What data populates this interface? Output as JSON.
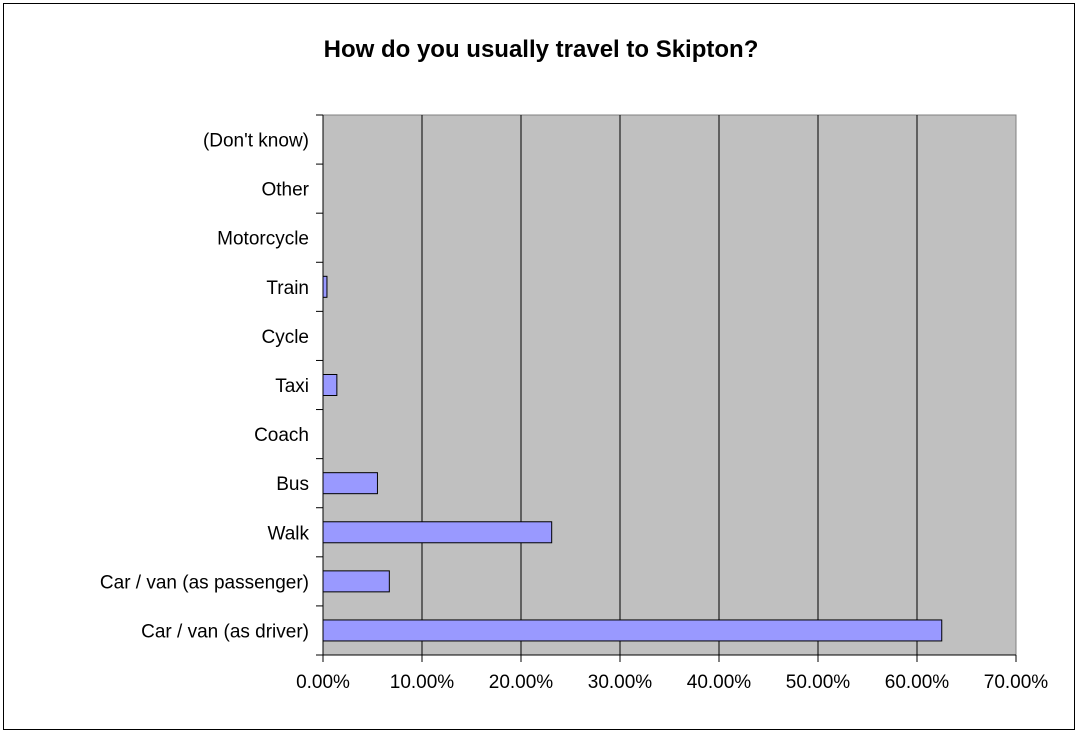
{
  "chart_data": {
    "type": "bar",
    "orientation": "horizontal",
    "title": "How do you usually travel to Skipton?",
    "xlabel": "",
    "ylabel": "",
    "categories": [
      "Car / van (as driver)",
      "Car / van (as passenger)",
      "Walk",
      "Bus",
      "Coach",
      "Taxi",
      "Cycle",
      "Train",
      "Motorcycle",
      "Other",
      "(Don't know)"
    ],
    "values": [
      62.5,
      6.7,
      23.1,
      5.5,
      0,
      1.4,
      0,
      0.4,
      0,
      0,
      0
    ],
    "xlim": [
      0,
      70
    ],
    "x_ticks": [
      0,
      10,
      20,
      30,
      40,
      50,
      60,
      70
    ],
    "x_tick_labels": [
      "0.00%",
      "10.00%",
      "20.00%",
      "30.00%",
      "40.00%",
      "50.00%",
      "60.00%",
      "70.00%"
    ],
    "grid": "vertical",
    "legend": "none",
    "colors": {
      "bar_fill": "#9999ff",
      "bar_stroke": "#000000",
      "plot_background": "#c0c0c0",
      "gridline": "#000000"
    }
  }
}
